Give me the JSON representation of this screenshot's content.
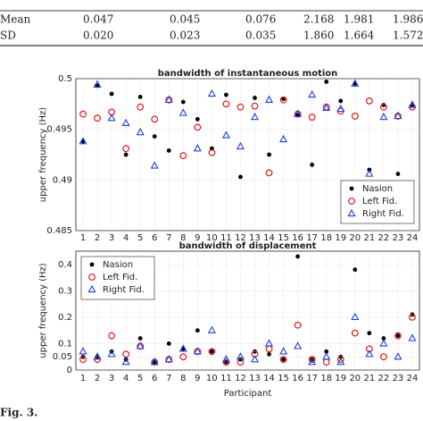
{
  "table": {
    "rows": [
      [
        "Mean",
        0.047,
        0.045,
        0.076,
        2.168,
        1.981,
        1.986
      ],
      [
        "SD",
        0.02,
        0.023,
        0.035,
        1.86,
        1.664,
        1.572
      ]
    ]
  },
  "chart_data": [
    {
      "type": "scatter",
      "title": "bandwidth of instantaneous motion",
      "y_label": "upper frequency (Hz)",
      "legend": "lower-right",
      "grid": true,
      "x": [
        1,
        2,
        3,
        4,
        5,
        6,
        7,
        8,
        9,
        10,
        11,
        12,
        13,
        14,
        15,
        16,
        17,
        18,
        19,
        20,
        21,
        22,
        23,
        24
      ],
      "xlim": [
        0.5,
        24.5
      ],
      "xticks": [
        1,
        2,
        3,
        4,
        5,
        6,
        7,
        8,
        9,
        10,
        11,
        12,
        13,
        14,
        15,
        16,
        17,
        18,
        19,
        20,
        21,
        22,
        23,
        24
      ],
      "ylim": [
        0.485,
        0.5
      ],
      "yticks": [
        0.485,
        0.49,
        0.495,
        0.5
      ],
      "series": [
        {
          "name": "Nasion",
          "color": "#000000",
          "marker": "dot",
          "values": [
            0.4938,
            0.4993,
            0.4985,
            0.4925,
            0.4982,
            0.4943,
            0.4929,
            0.4977,
            0.496,
            0.4931,
            0.4984,
            0.4903,
            0.4981,
            0.4925,
            0.498,
            0.4964,
            0.4915,
            0.4997,
            0.4978,
            0.4995,
            0.491,
            0.4974,
            0.4906,
            0.4974
          ]
        },
        {
          "name": "Left Fid.",
          "color": "#e0191e",
          "marker": "circle",
          "values": [
            0.4965,
            0.4961,
            0.4967,
            0.4931,
            0.4972,
            0.496,
            0.4979,
            0.4924,
            0.4952,
            0.4927,
            0.4975,
            0.4972,
            0.4973,
            0.4907,
            0.4979,
            0.4965,
            0.4962,
            0.4972,
            0.4968,
            0.4963,
            0.4978,
            0.4972,
            0.4963,
            0.4972
          ]
        },
        {
          "name": "Right Fid.",
          "color": "#1f3fe0",
          "marker": "triangle",
          "values": [
            0.4938,
            0.4994,
            0.4961,
            0.4956,
            0.4947,
            0.4914,
            0.4979,
            0.4966,
            0.4931,
            0.4985,
            0.4944,
            0.4933,
            0.4962,
            0.4979,
            0.494,
            0.4965,
            0.4984,
            0.4971,
            0.497,
            0.4995,
            0.4906,
            0.4962,
            0.4963,
            0.4974
          ]
        }
      ]
    },
    {
      "type": "scatter",
      "title": "bandwidth of displacement",
      "x_label": "Participant",
      "y_label": "upper frequency (Hz)",
      "legend": "upper-left",
      "grid": true,
      "x": [
        1,
        2,
        3,
        4,
        5,
        6,
        7,
        8,
        9,
        10,
        11,
        12,
        13,
        14,
        15,
        16,
        17,
        18,
        19,
        20,
        21,
        22,
        23,
        24
      ],
      "xlim": [
        0.5,
        24.5
      ],
      "xticks": [
        1,
        2,
        3,
        4,
        5,
        6,
        7,
        8,
        9,
        10,
        11,
        12,
        13,
        14,
        15,
        16,
        17,
        18,
        19,
        20,
        21,
        22,
        23,
        24
      ],
      "ylim": [
        0,
        0.45
      ],
      "yticks": [
        0,
        0.05,
        0.1,
        0.2,
        0.3,
        0.4
      ],
      "series": [
        {
          "name": "Nasion",
          "color": "#000000",
          "marker": "dot",
          "values": [
            0.05,
            0.05,
            0.07,
            0.04,
            0.12,
            0.03,
            0.1,
            0.08,
            0.15,
            0.07,
            0.03,
            0.04,
            0.07,
            0.06,
            0.04,
            0.43,
            0.04,
            0.07,
            0.05,
            0.38,
            0.14,
            0.12,
            0.13,
            0.21
          ]
        },
        {
          "name": "Left Fid.",
          "color": "#e0191e",
          "marker": "circle",
          "values": [
            0.04,
            0.04,
            0.13,
            0.06,
            0.09,
            0.03,
            0.04,
            0.05,
            0.07,
            0.07,
            0.03,
            0.03,
            0.06,
            0.08,
            0.04,
            0.17,
            0.04,
            0.03,
            0.04,
            0.14,
            0.08,
            0.05,
            0.13,
            0.2
          ]
        },
        {
          "name": "Right Fid.",
          "color": "#1f3fe0",
          "marker": "triangle",
          "values": [
            0.07,
            0.05,
            0.06,
            0.03,
            0.09,
            0.03,
            0.04,
            0.08,
            0.07,
            0.15,
            0.04,
            0.05,
            0.04,
            0.1,
            0.07,
            0.09,
            0.03,
            0.05,
            0.03,
            0.2,
            0.06,
            0.1,
            0.05,
            0.12
          ]
        }
      ]
    }
  ],
  "caption": "Fig. 3."
}
